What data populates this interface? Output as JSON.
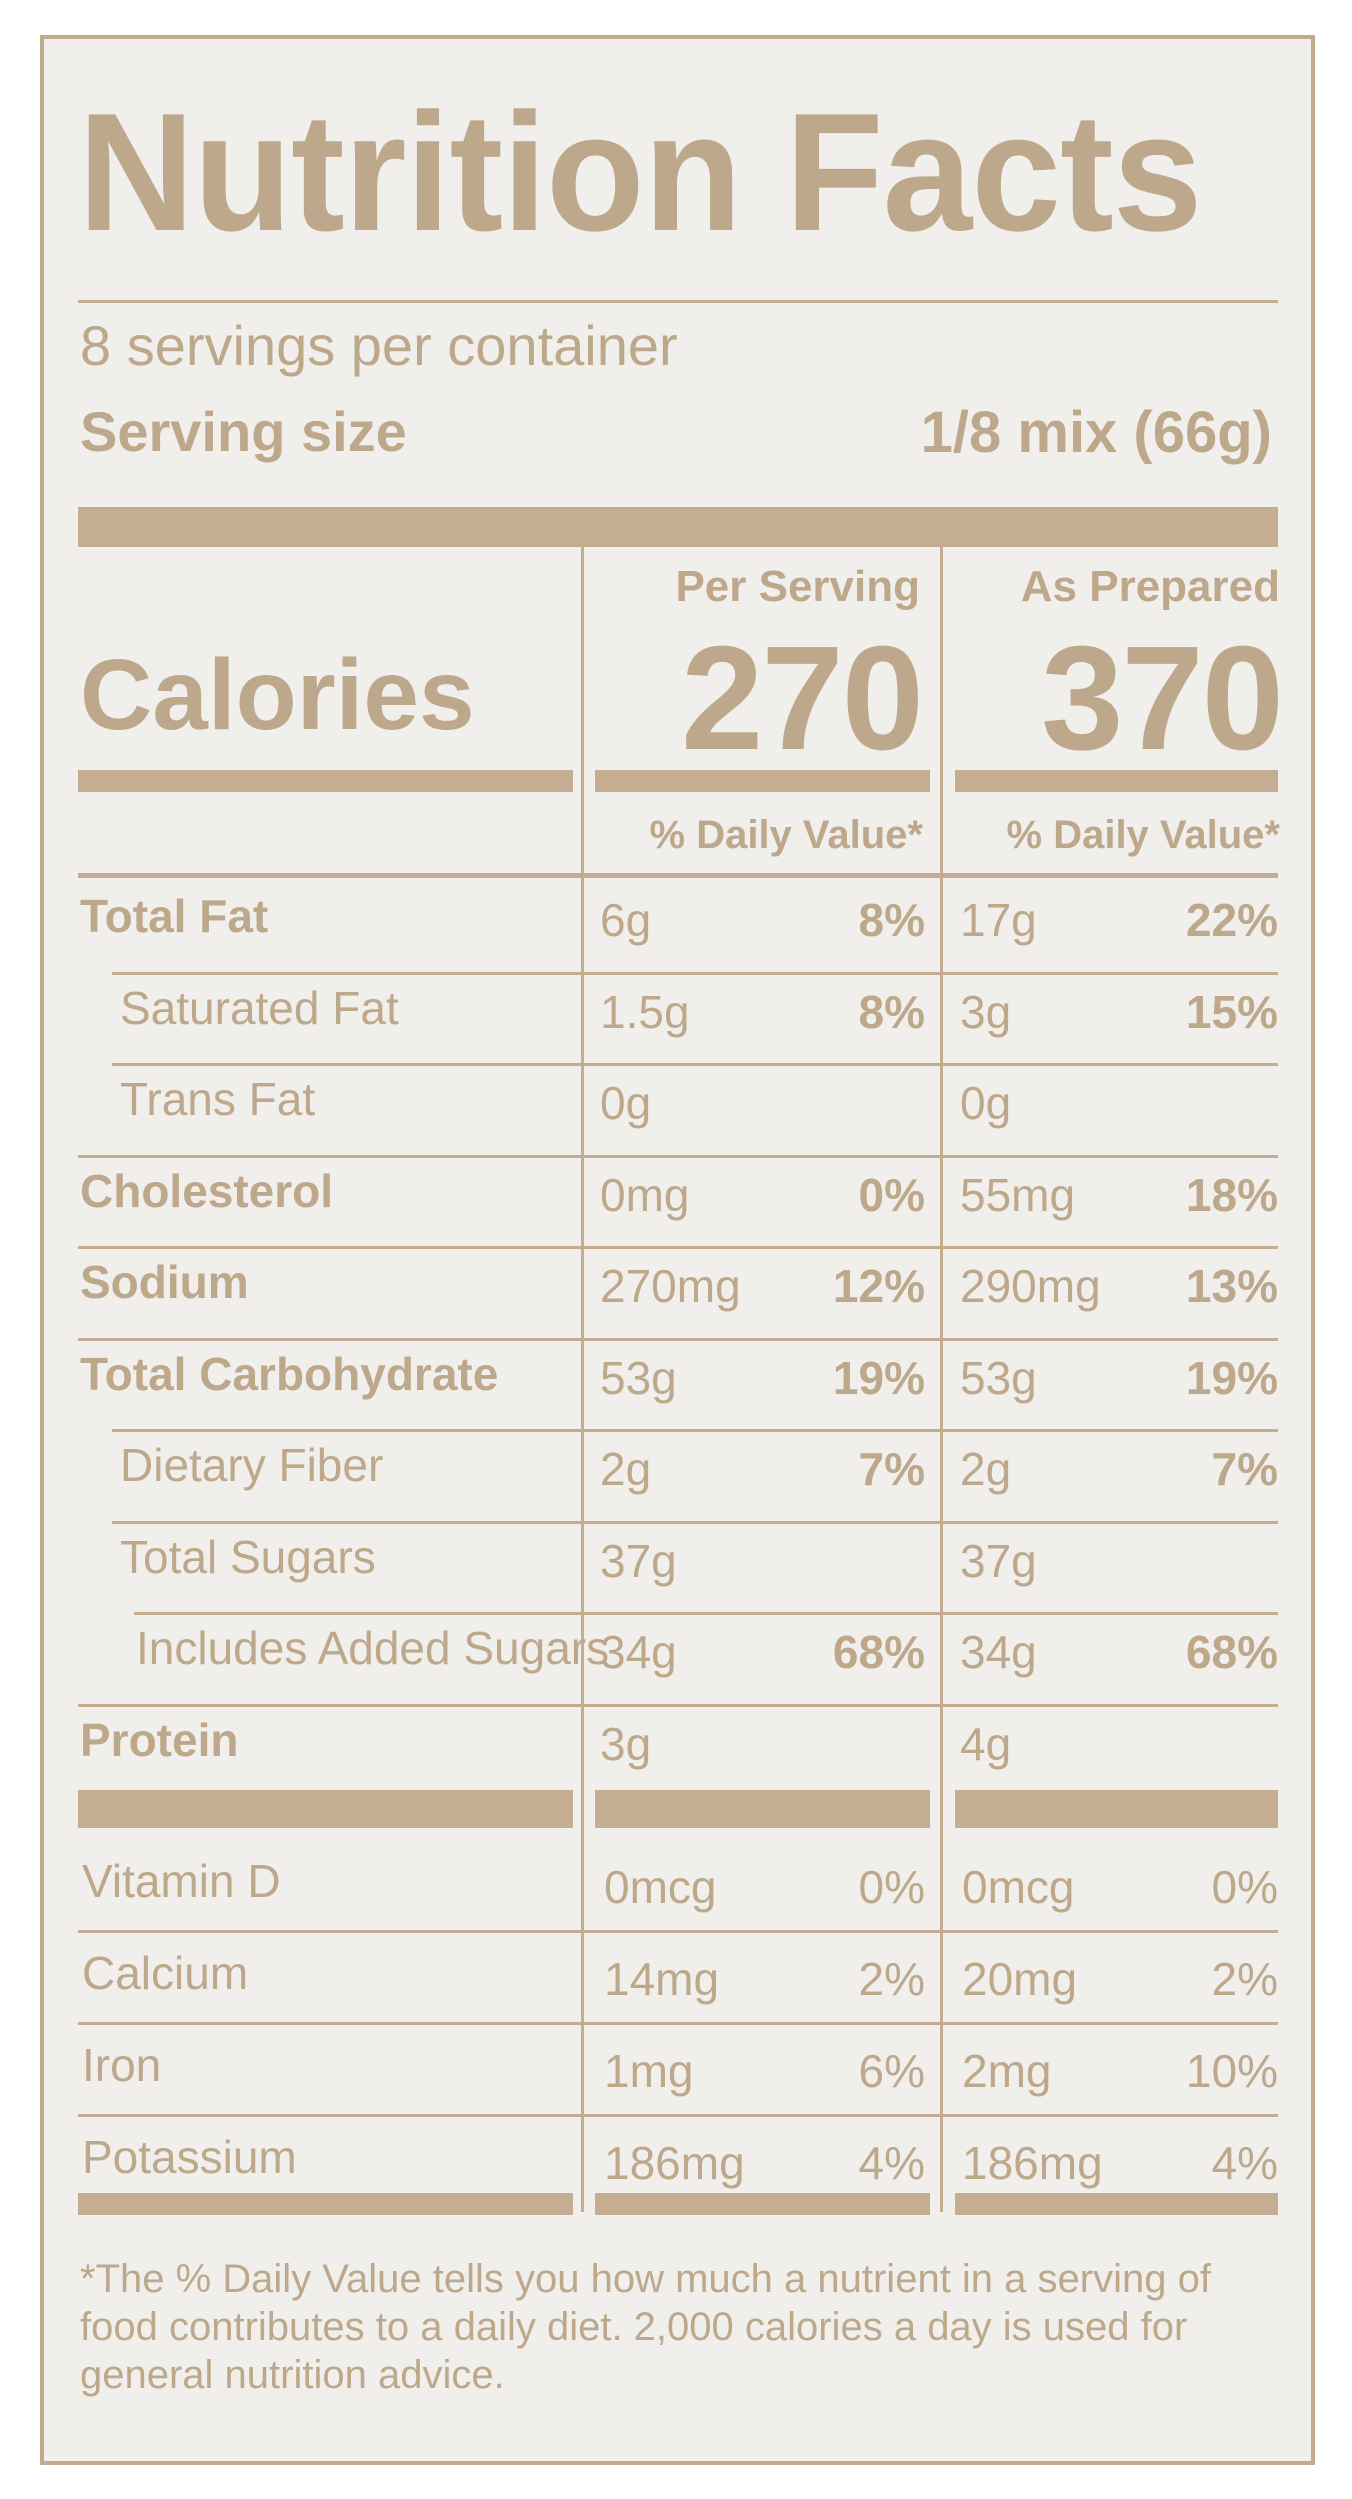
{
  "title": "Nutrition Facts",
  "servings_per_container": "8 servings per container",
  "serving_size": {
    "label": "Serving size",
    "value": "1/8 mix (66g)"
  },
  "calories": {
    "label": "Calories",
    "columns": [
      {
        "header": "Per Serving",
        "value": "270",
        "dv_header": "% Daily Value*"
      },
      {
        "header": "As Prepared",
        "value": "370",
        "dv_header": "% Daily Value*"
      }
    ]
  },
  "nutrients": [
    {
      "name": "Total Fat",
      "bold": true,
      "indent": 0,
      "a_amount": "6g",
      "a_dv": "8%",
      "b_amount": "17g",
      "b_dv": "22%"
    },
    {
      "name": "Saturated Fat",
      "bold": false,
      "indent": 1,
      "a_amount": "1.5g",
      "a_dv": "8%",
      "b_amount": "3g",
      "b_dv": "15%"
    },
    {
      "name": "Trans Fat",
      "bold": false,
      "indent": 1,
      "a_amount": "0g",
      "a_dv": "",
      "b_amount": "0g",
      "b_dv": ""
    },
    {
      "name": "Cholesterol",
      "bold": true,
      "indent": 0,
      "a_amount": "0mg",
      "a_dv": "0%",
      "b_amount": "55mg",
      "b_dv": "18%"
    },
    {
      "name": "Sodium",
      "bold": true,
      "indent": 0,
      "a_amount": "270mg",
      "a_dv": "12%",
      "b_amount": "290mg",
      "b_dv": "13%"
    },
    {
      "name": "Total Carbohydrate",
      "bold": true,
      "indent": 0,
      "a_amount": "53g",
      "a_dv": "19%",
      "b_amount": "53g",
      "b_dv": "19%"
    },
    {
      "name": "Dietary Fiber",
      "bold": false,
      "indent": 1,
      "a_amount": "2g",
      "a_dv": "7%",
      "b_amount": "2g",
      "b_dv": "7%"
    },
    {
      "name": "Total Sugars",
      "bold": false,
      "indent": 1,
      "a_amount": "37g",
      "a_dv": "",
      "b_amount": "37g",
      "b_dv": ""
    },
    {
      "name": "Includes Added Sugars",
      "bold": false,
      "indent": 2,
      "a_amount": "34g",
      "a_dv": "68%",
      "b_amount": "34g",
      "b_dv": "68%"
    },
    {
      "name": "Protein",
      "bold": true,
      "indent": 0,
      "a_amount": "3g",
      "a_dv": "",
      "b_amount": "4g",
      "b_dv": ""
    }
  ],
  "vitamins": [
    {
      "name": "Vitamin D",
      "a_amount": "0mcg",
      "a_dv": "0%",
      "b_amount": "0mcg",
      "b_dv": "0%"
    },
    {
      "name": "Calcium",
      "a_amount": "14mg",
      "a_dv": "2%",
      "b_amount": "20mg",
      "b_dv": "2%"
    },
    {
      "name": "Iron",
      "a_amount": "1mg",
      "a_dv": "6%",
      "b_amount": "2mg",
      "b_dv": "10%"
    },
    {
      "name": "Potassium",
      "a_amount": "186mg",
      "a_dv": "4%",
      "b_amount": "186mg",
      "b_dv": "4%"
    }
  ],
  "footnote": "*The % Daily Value tells you how much a nutrient in a serving of food contributes to a daily diet. 2,000 calories a day is used for general nutrition advice.",
  "colors": {
    "ink": "#bda88b",
    "background": "#f1efeb"
  }
}
